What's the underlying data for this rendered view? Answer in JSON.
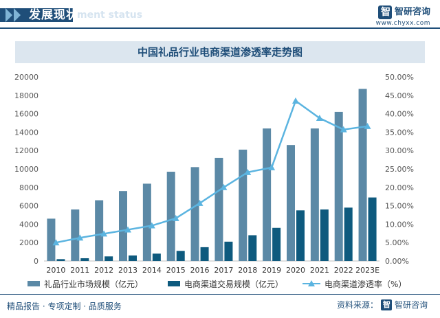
{
  "header": {
    "title": "发展现状",
    "subtitle": "ment status"
  },
  "brand": {
    "name": "智研咨询",
    "url": "www.chyxx.com"
  },
  "footer": {
    "left": "精品报告 · 专项定制 · 品质服务",
    "source_label": "资料来源：",
    "source_name": "智研咨询"
  },
  "colors": {
    "market_bar": "#5b89a6",
    "ecommerce_bar": "#0e5a7e",
    "penetration_line": "#5bb4e0",
    "brand": "#1f4e79"
  },
  "chart_data": {
    "type": "bar",
    "title": "中国礼品行业电商渠道渗透率走势图",
    "categories": [
      "2010",
      "2011",
      "2012",
      "2013",
      "2014",
      "2015",
      "2016",
      "2017",
      "2018",
      "2019",
      "2020",
      "2021",
      "2022",
      "2023E"
    ],
    "series": [
      {
        "name": "礼品行业市场规模（亿元）",
        "type": "bar",
        "axis": "left",
        "values": [
          4600,
          5600,
          6600,
          7600,
          8400,
          9700,
          10200,
          11200,
          12100,
          14400,
          12600,
          14400,
          16200,
          18700
        ]
      },
      {
        "name": "电商渠道交易规模（亿元）",
        "type": "bar",
        "axis": "left",
        "values": [
          200,
          300,
          500,
          600,
          800,
          1100,
          1500,
          2100,
          2800,
          3600,
          5500,
          5600,
          5800,
          6900
        ]
      },
      {
        "name": "电商渠道渗透率（%）",
        "type": "line",
        "axis": "right",
        "values": [
          5.0,
          6.3,
          7.4,
          8.5,
          9.6,
          11.6,
          15.7,
          20.0,
          24.1,
          25.4,
          43.5,
          38.8,
          35.7,
          36.6
        ]
      }
    ],
    "ylim_left": [
      0,
      20000
    ],
    "yticks_left": [
      "0",
      "2000",
      "4000",
      "6000",
      "8000",
      "10000",
      "12000",
      "14000",
      "16000",
      "18000",
      "20000"
    ],
    "ylim_right": [
      0,
      50
    ],
    "yticks_right": [
      "0.00%",
      "5.00%",
      "10.00%",
      "15.00%",
      "20.00%",
      "25.00%",
      "30.00%",
      "35.00%",
      "40.00%",
      "45.00%",
      "50.00%"
    ],
    "legend_position": "bottom",
    "grid": false
  }
}
